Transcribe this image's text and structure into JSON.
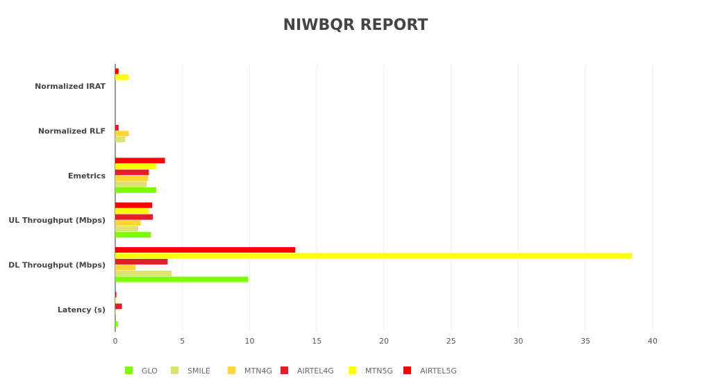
{
  "chart_data": {
    "type": "bar",
    "orientation": "horizontal",
    "title": "NIWBQR REPORT",
    "categories": [
      "Normalized IRAT",
      "Normalized RLF",
      "Emetrics",
      "UL Throughput (Mbps)",
      "DL Throughput (Mbps)",
      "Latency (s)"
    ],
    "series": [
      {
        "name": "GLO",
        "color": "#7cfc00",
        "values": [
          0,
          0,
          3.05,
          2.65,
          9.9,
          0.2
        ]
      },
      {
        "name": "SMILE",
        "color": "#dde36f",
        "values": [
          0,
          0.75,
          2.35,
          1.7,
          4.2,
          0
        ]
      },
      {
        "name": "MTN4G",
        "color": "#ffd633",
        "values": [
          0,
          1.0,
          2.45,
          1.9,
          1.5,
          0.05
        ]
      },
      {
        "name": "AIRTEL4G",
        "color": "#e21f26",
        "values": [
          0,
          0.25,
          2.5,
          2.8,
          3.9,
          0.5
        ]
      },
      {
        "name": "MTN5G",
        "color": "#ffff00",
        "values": [
          1.0,
          0,
          3.05,
          2.5,
          38.45,
          0.02
        ]
      },
      {
        "name": "AIRTEL5G",
        "color": "#ff0000",
        "values": [
          0.25,
          0,
          3.7,
          2.75,
          13.4,
          0.08
        ]
      }
    ],
    "xlim": [
      0,
      40
    ],
    "xticks": [
      "0",
      "5",
      "10",
      "15",
      "20",
      "25",
      "30",
      "35",
      "40"
    ],
    "grid": true,
    "legend": "bottom"
  }
}
